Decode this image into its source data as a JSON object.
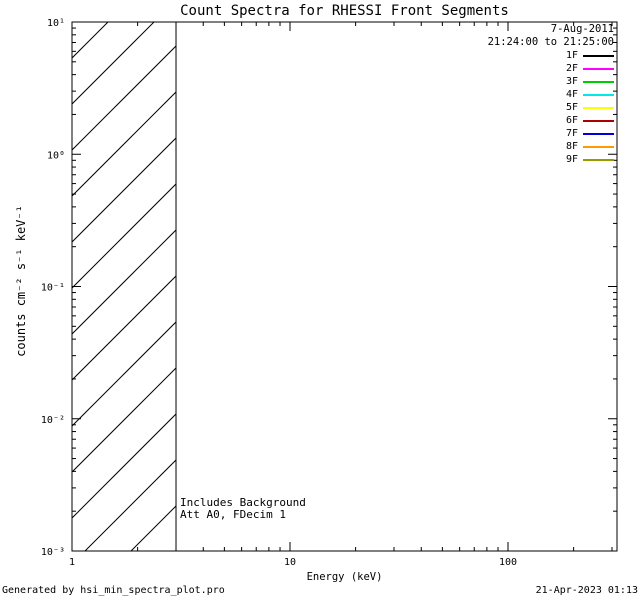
{
  "title": "Count Spectra for RHESSI Front Segments",
  "header": {
    "date": "7-Aug-2011",
    "time_range": "21:24:00 to 21:25:00"
  },
  "legend": {
    "entries": [
      {
        "label": "1F",
        "color": "#000000"
      },
      {
        "label": "2F",
        "color": "#ff00ff"
      },
      {
        "label": "3F",
        "color": "#00cc00"
      },
      {
        "label": "4F",
        "color": "#00e8e8"
      },
      {
        "label": "5F",
        "color": "#ffff00"
      },
      {
        "label": "6F",
        "color": "#aa0000"
      },
      {
        "label": "7F",
        "color": "#0000dd"
      },
      {
        "label": "8F",
        "color": "#ff9900"
      },
      {
        "label": "9F",
        "color": "#999900"
      }
    ]
  },
  "annotations": {
    "line1": "Includes Background",
    "line2": "Att A0, FDecim 1"
  },
  "axes": {
    "xlabel": "Energy (keV)",
    "ylabel": "counts cm⁻² s⁻¹ keV⁻¹"
  },
  "footer": {
    "left": "Generated by hsi_min_spectra_plot.pro",
    "right": "21-Apr-2023 01:13"
  },
  "chart_data": {
    "type": "line",
    "title": "Count Spectra for RHESSI Front Segments",
    "xlabel": "Energy (keV)",
    "ylabel": "counts cm^-2 s^-1 keV^-1",
    "xscale": "log",
    "yscale": "log",
    "xlim": [
      1,
      316.23
    ],
    "ylim": [
      0.001,
      10
    ],
    "x_ticks": {
      "major": [
        1,
        10,
        100
      ],
      "labels": [
        "1",
        "10",
        "100"
      ]
    },
    "y_ticks": {
      "major": [
        0.001,
        0.01,
        0.1,
        1,
        10
      ],
      "labels": [
        "10⁻³",
        "10⁻²",
        "10⁻¹",
        "10⁰",
        "10¹"
      ]
    },
    "grid": false,
    "legend_position": "top-right",
    "series": [
      {
        "name": "1F",
        "color": "#000000",
        "values": []
      },
      {
        "name": "2F",
        "color": "#ff00ff",
        "values": []
      },
      {
        "name": "3F",
        "color": "#00cc00",
        "values": []
      },
      {
        "name": "4F",
        "color": "#00e8e8",
        "values": []
      },
      {
        "name": "5F",
        "color": "#ffff00",
        "values": []
      },
      {
        "name": "6F",
        "color": "#aa0000",
        "values": []
      },
      {
        "name": "7F",
        "color": "#0000dd",
        "values": []
      },
      {
        "name": "8F",
        "color": "#ff9900",
        "values": []
      },
      {
        "name": "9F",
        "color": "#999900",
        "values": []
      }
    ],
    "hatched_region": {
      "x_range": [
        1,
        3
      ],
      "y_range": [
        0.001,
        10
      ],
      "style": "diagonal-lines"
    }
  }
}
